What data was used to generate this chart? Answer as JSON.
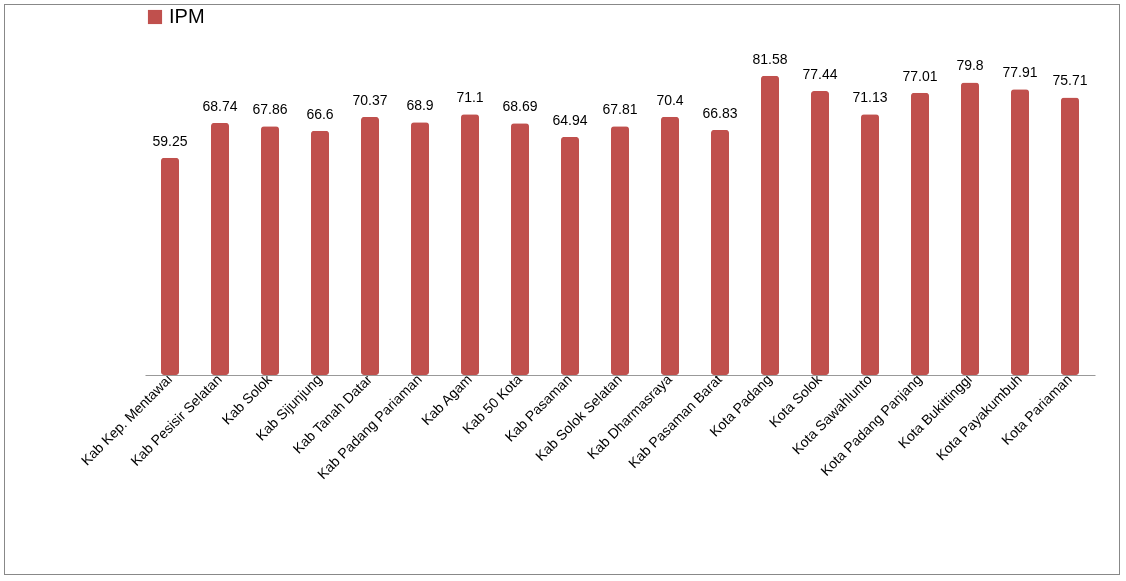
{
  "chart_data": {
    "type": "bar",
    "categories": [
      "Kab Kep. Mentawai",
      "Kab Pesisir Selatan",
      "Kab Solok",
      "Kab Sijunjung",
      "Kab Tanah Datar",
      "Kab Padang Pariaman",
      "Kab Agam",
      "Kab 50 Kota",
      "Kab Pasaman",
      "Kab Solok Selatan",
      "Kab Dharmasraya",
      "Kab Pasaman Barat",
      "Kota Padang",
      "Kota Solok",
      "Kota Sawahlunto",
      "Kota Padang Panjang",
      "Kota Bukittinggi",
      "Kota Payakumbuh",
      "Kota Pariaman"
    ],
    "series": [
      {
        "name": "IPM",
        "color": "#c0504d",
        "values": [
          59.25,
          68.74,
          67.86,
          66.6,
          70.37,
          68.9,
          71.1,
          68.69,
          64.94,
          67.81,
          70.4,
          66.83,
          81.58,
          77.44,
          71.13,
          77.01,
          79.8,
          77.91,
          75.71
        ]
      }
    ],
    "data_labels": true,
    "legend": "top",
    "grid": false
  }
}
